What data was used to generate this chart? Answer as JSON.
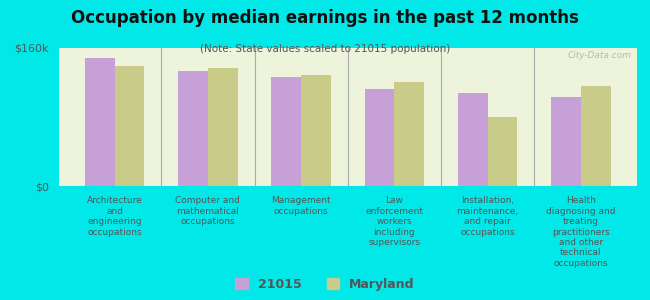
{
  "title": "Occupation by median earnings in the past 12 months",
  "subtitle": "(Note: State values scaled to 21015 population)",
  "background_color": "#00e8e8",
  "plot_bg_color": "#eef4dc",
  "categories": [
    "Architecture\nand\nengineering\noccupations",
    "Computer and\nmathematical\noccupations",
    "Management\noccupations",
    "Law\nenforcement\nworkers\nincluding\nsupervisors",
    "Installation,\nmaintenance,\nand repair\noccupations",
    "Health\ndiagnosing and\ntreating\npractitioners\nand other\ntechnical\noccupations"
  ],
  "values_21015": [
    148000,
    133000,
    126000,
    112000,
    108000,
    103000
  ],
  "values_maryland": [
    139000,
    137000,
    129000,
    120000,
    80000,
    116000
  ],
  "bar_color_21015": "#c8a0d8",
  "bar_color_maryland": "#c8cc88",
  "ylim": [
    0,
    160000
  ],
  "yticks": [
    0,
    160000
  ],
  "ytick_labels": [
    "$0",
    "$160k"
  ],
  "legend_21015": "21015",
  "legend_maryland": "Maryland",
  "watermark": "City-Data.com"
}
